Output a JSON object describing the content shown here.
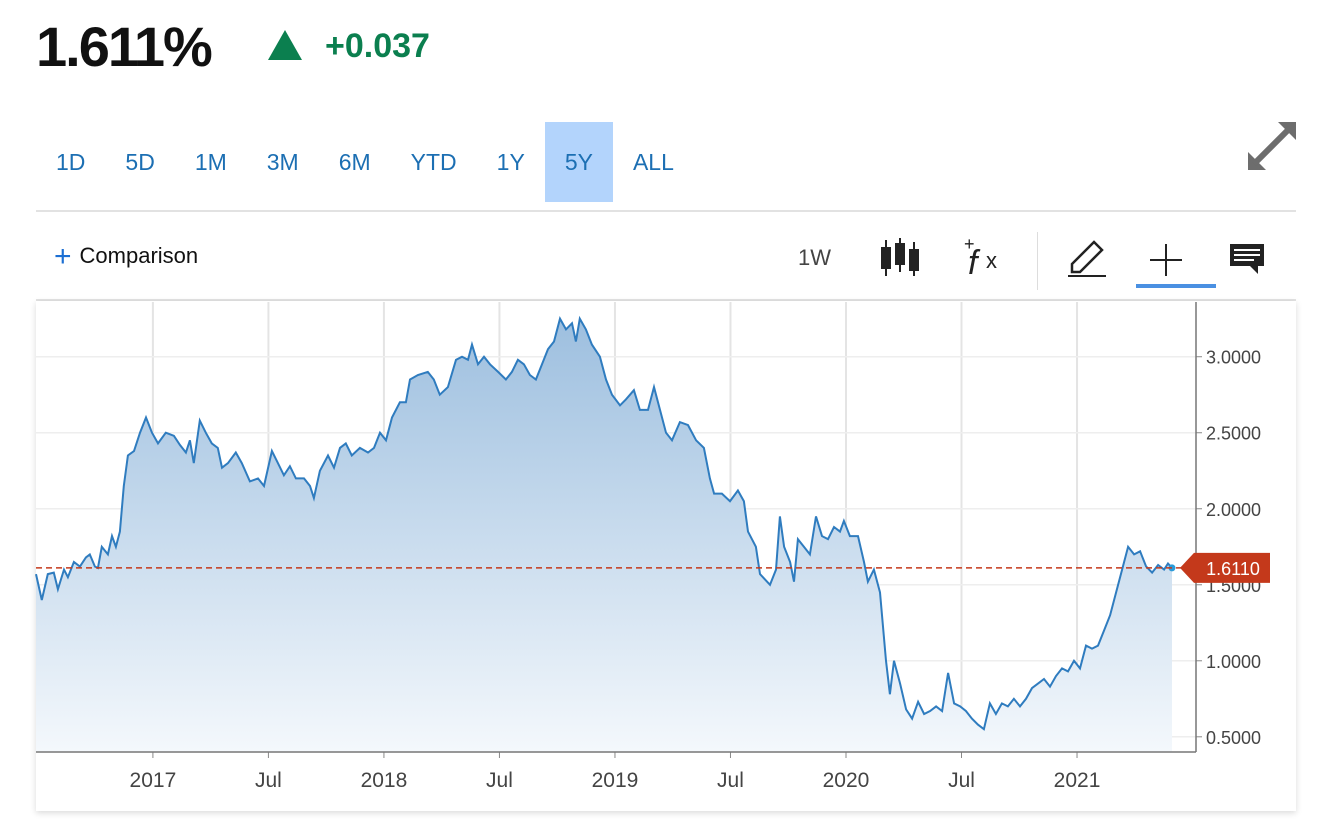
{
  "header": {
    "price": "1.611%",
    "change": "+0.037",
    "change_color": "#0b7f4f"
  },
  "ranges": [
    "1D",
    "5D",
    "1M",
    "3M",
    "6M",
    "YTD",
    "1Y",
    "5Y",
    "ALL"
  ],
  "active_range": "5Y",
  "toolbar": {
    "comparison": "Comparison",
    "interval": "1W"
  },
  "chart_data": {
    "type": "area",
    "series": [
      {
        "color": "#2f7cbf",
        "x": [
          2016.494,
          2016.519,
          2016.545,
          2016.571,
          2016.589,
          2016.615,
          2016.632,
          2016.658,
          2016.684,
          2016.71,
          2016.727,
          2016.749,
          2016.762,
          2016.779,
          2016.805,
          2016.823,
          2016.84,
          2016.857,
          2016.874,
          2016.892,
          2016.918,
          2016.944,
          2016.97,
          2016.996,
          2017.022,
          2017.056,
          2017.091,
          2017.117,
          2017.143,
          2017.16,
          2017.177,
          2017.203,
          2017.229,
          2017.255,
          2017.281,
          2017.299,
          2017.325,
          2017.359,
          2017.385,
          2017.42,
          2017.455,
          2017.481,
          2017.515,
          2017.541,
          2017.567,
          2017.593,
          2017.619,
          2017.654,
          2017.68,
          2017.697,
          2017.723,
          2017.758,
          2017.784,
          2017.81,
          2017.835,
          2017.861,
          2017.896,
          2017.931,
          2017.957,
          2017.983,
          2018.009,
          2018.035,
          2018.069,
          2018.095,
          2018.113,
          2018.147,
          2018.19,
          2018.216,
          2018.242,
          2018.277,
          2018.312,
          2018.338,
          2018.364,
          2018.381,
          2018.407,
          2018.433,
          2018.459,
          2018.494,
          2018.528,
          2018.554,
          2018.58,
          2018.606,
          2018.632,
          2018.658,
          2018.684,
          2018.71,
          2018.736,
          2018.762,
          2018.788,
          2018.814,
          2018.831,
          2018.848,
          2018.874,
          2018.9,
          2018.935,
          2018.961,
          2018.987,
          2019.022,
          2019.048,
          2019.082,
          2019.108,
          2019.143,
          2019.169,
          2019.195,
          2019.221,
          2019.247,
          2019.281,
          2019.316,
          2019.351,
          2019.385,
          2019.411,
          2019.429,
          2019.463,
          2019.498,
          2019.532,
          2019.558,
          2019.576,
          2019.61,
          2019.628,
          2019.671,
          2019.697,
          2019.714,
          2019.732,
          2019.758,
          2019.775,
          2019.792,
          2019.818,
          2019.844,
          2019.87,
          2019.896,
          2019.922,
          2019.948,
          2019.974,
          2019.991,
          2020.017,
          2020.052,
          2020.078,
          2020.095,
          2020.121,
          2020.147,
          2020.173,
          2020.19,
          2020.208,
          2020.234,
          2020.26,
          2020.286,
          2020.312,
          2020.338,
          2020.364,
          2020.39,
          2020.416,
          2020.442,
          2020.468,
          2020.494,
          2020.519,
          2020.545,
          2020.571,
          2020.597,
          2020.623,
          2020.649,
          2020.675,
          2020.701,
          2020.727,
          2020.753,
          2020.779,
          2020.805,
          2020.831,
          2020.857,
          2020.883,
          2020.909,
          2020.935,
          2020.961,
          2020.987,
          2021.013,
          2021.039,
          2021.065,
          2021.091,
          2021.117,
          2021.143,
          2021.169,
          2021.195,
          2021.221,
          2021.247,
          2021.273,
          2021.299,
          2021.325,
          2021.351,
          2021.377,
          2021.394,
          2021.411
        ],
        "values": [
          1.57,
          1.4,
          1.57,
          1.58,
          1.47,
          1.6,
          1.55,
          1.65,
          1.62,
          1.68,
          1.7,
          1.62,
          1.61,
          1.75,
          1.7,
          1.82,
          1.75,
          1.85,
          2.15,
          2.35,
          2.38,
          2.5,
          2.6,
          2.5,
          2.43,
          2.5,
          2.48,
          2.42,
          2.37,
          2.45,
          2.3,
          2.58,
          2.5,
          2.43,
          2.4,
          2.27,
          2.3,
          2.37,
          2.3,
          2.18,
          2.2,
          2.15,
          2.38,
          2.3,
          2.22,
          2.28,
          2.2,
          2.2,
          2.15,
          2.07,
          2.25,
          2.35,
          2.27,
          2.4,
          2.43,
          2.35,
          2.4,
          2.37,
          2.4,
          2.5,
          2.45,
          2.6,
          2.7,
          2.7,
          2.85,
          2.88,
          2.9,
          2.85,
          2.75,
          2.8,
          2.98,
          3.0,
          2.98,
          3.08,
          2.95,
          3.0,
          2.95,
          2.9,
          2.85,
          2.9,
          2.98,
          2.95,
          2.88,
          2.85,
          2.95,
          3.05,
          3.1,
          3.25,
          3.18,
          3.22,
          3.1,
          3.25,
          3.18,
          3.08,
          3.0,
          2.85,
          2.75,
          2.68,
          2.72,
          2.78,
          2.65,
          2.65,
          2.8,
          2.65,
          2.5,
          2.45,
          2.57,
          2.55,
          2.45,
          2.4,
          2.2,
          2.1,
          2.1,
          2.05,
          2.12,
          2.05,
          1.85,
          1.75,
          1.57,
          1.5,
          1.6,
          1.95,
          1.75,
          1.65,
          1.52,
          1.8,
          1.75,
          1.7,
          1.95,
          1.82,
          1.8,
          1.88,
          1.85,
          1.92,
          1.82,
          1.82,
          1.65,
          1.52,
          1.6,
          1.45,
          1.0,
          0.78,
          1.0,
          0.85,
          0.68,
          0.62,
          0.73,
          0.65,
          0.67,
          0.7,
          0.67,
          0.92,
          0.72,
          0.7,
          0.67,
          0.62,
          0.58,
          0.55,
          0.72,
          0.65,
          0.72,
          0.7,
          0.75,
          0.7,
          0.75,
          0.82,
          0.85,
          0.88,
          0.83,
          0.9,
          0.95,
          0.93,
          1.0,
          0.95,
          1.1,
          1.08,
          1.1,
          1.2,
          1.3,
          1.45,
          1.6,
          1.75,
          1.7,
          1.72,
          1.62,
          1.58,
          1.63,
          1.6,
          1.64,
          1.611
        ]
      }
    ],
    "xlim": [
      2016.494,
      2021.515
    ],
    "xticks": [
      2017,
      {
        "value": 2017.5,
        "label": "Jul"
      },
      2018,
      {
        "value": 2018.5,
        "label": "Jul"
      },
      2019,
      {
        "value": 2019.5,
        "label": "Jul"
      },
      2020,
      {
        "value": 2020.5,
        "label": "Jul"
      },
      2021
    ],
    "ylim": [
      0.4,
      3.36
    ],
    "yticks": [
      {
        "value": 0.5,
        "label": "0.5000"
      },
      {
        "value": 1.0,
        "label": "1.0000"
      },
      {
        "value": 1.5,
        "label": "1.5000"
      },
      {
        "value": 2.0,
        "label": "2.0000"
      },
      {
        "value": 2.5,
        "label": "2.5000"
      },
      {
        "value": 3.0,
        "label": "3.0000"
      }
    ],
    "grid": true,
    "reference_line": {
      "value": 1.611,
      "label": "1.6110",
      "color": "#c4391b"
    }
  }
}
